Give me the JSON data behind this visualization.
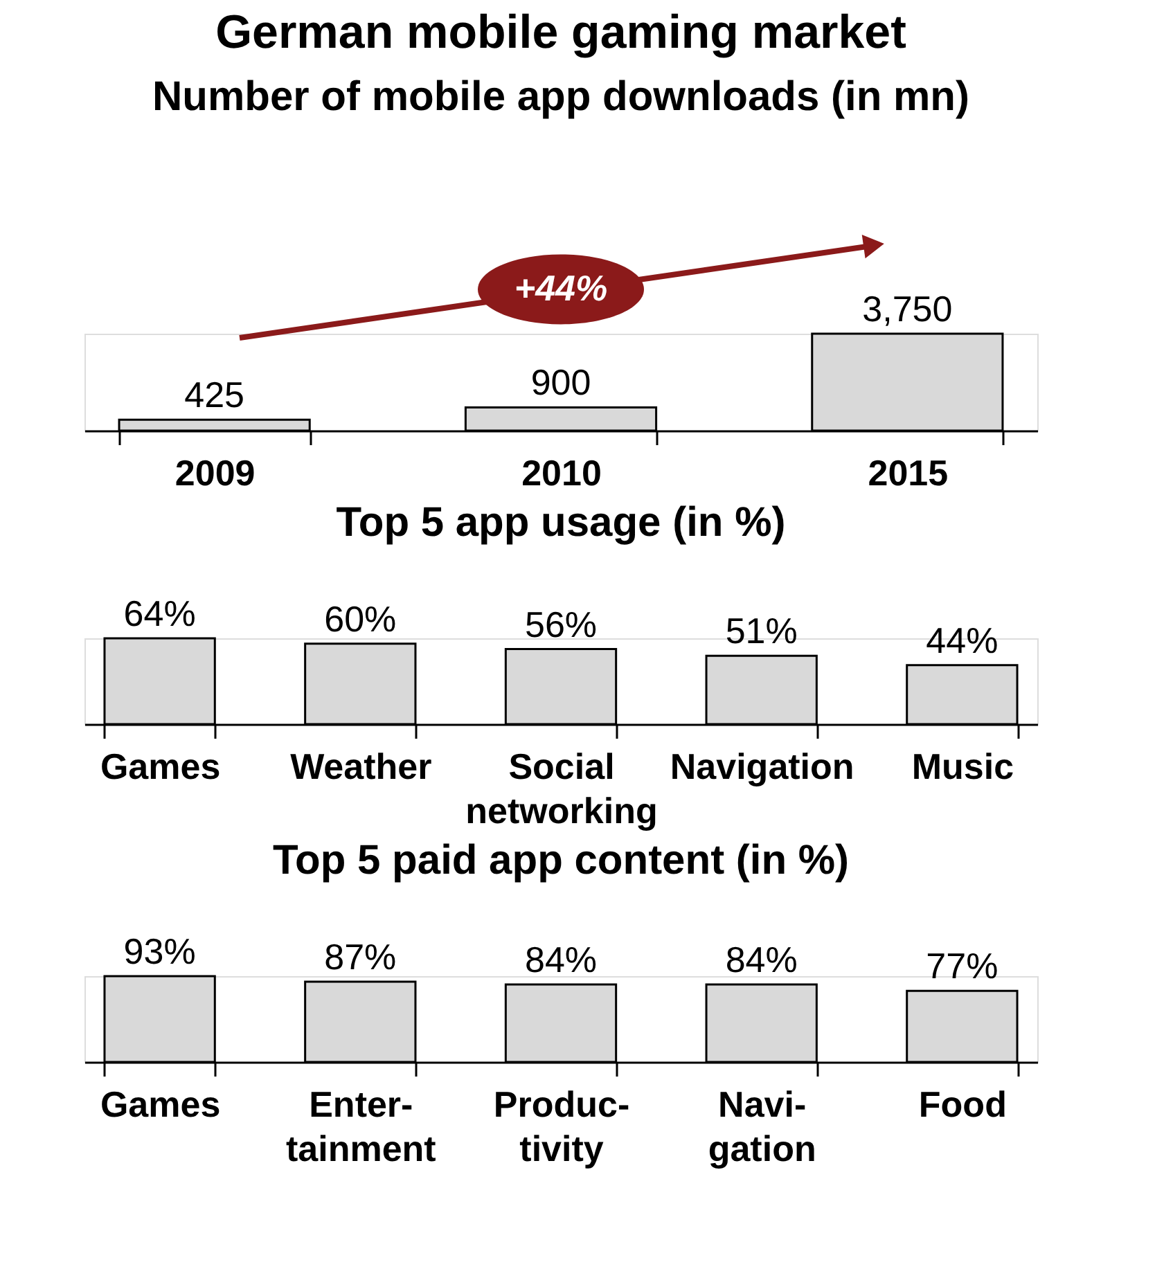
{
  "chart_data": [
    {
      "type": "bar",
      "title": "German mobile gaming market",
      "subtitle": "Number of mobile app downloads (in mn)",
      "categories": [
        "2009",
        "2010",
        "2015"
      ],
      "values": [
        425,
        900,
        3750
      ],
      "value_labels": [
        "425",
        "900",
        "3,750"
      ],
      "color": "#d9d9d9",
      "annotations": [
        "+44%"
      ]
    },
    {
      "type": "bar",
      "title": "Top 5 app usage (in %)",
      "categories": [
        "Games",
        "Weather",
        "Social\nnetworking",
        "Navigation",
        "Music"
      ],
      "values": [
        64,
        60,
        56,
        51,
        44
      ],
      "value_labels": [
        "64%",
        "60%",
        "56%",
        "51%",
        "44%"
      ],
      "color": "#d9d9d9"
    },
    {
      "type": "bar",
      "title": "Top 5 paid app content (in %)",
      "categories": [
        "Games",
        "Enter-\ntainment",
        "Produc-\ntivity",
        "Navi-\ngation",
        "Food"
      ],
      "values": [
        93,
        87,
        84,
        84,
        77
      ],
      "value_labels": [
        "93%",
        "87%",
        "84%",
        "84%",
        "77%"
      ],
      "color": "#d9d9d9"
    }
  ]
}
